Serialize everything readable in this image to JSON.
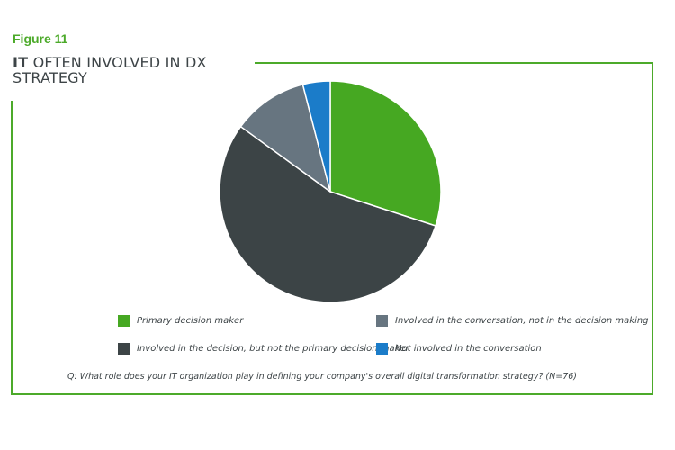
{
  "figure_label": "Figure 11",
  "title_highlight": "IT",
  "title_rest": " OFTEN INVOLVED IN DX STRATEGY",
  "question": "Q: What role does your IT organization play in defining your company's overall digital transformation strategy? (N=76)",
  "colors": {
    "accent": "#4caa2a",
    "text": "#3d4447"
  },
  "chart_data": {
    "type": "pie",
    "categories": [
      "Primary decision maker",
      "Involved in the decision, but not the primary decision maker",
      "Involved in the conversation, not in the decision making",
      "Not involved in the conversation"
    ],
    "values": [
      30,
      55,
      11,
      4
    ],
    "colors": [
      "#46a822",
      "#3c4446",
      "#677580",
      "#1b7cc9"
    ],
    "start_angle_deg": 0,
    "direction": "clockwise",
    "legend_position": "bottom"
  }
}
